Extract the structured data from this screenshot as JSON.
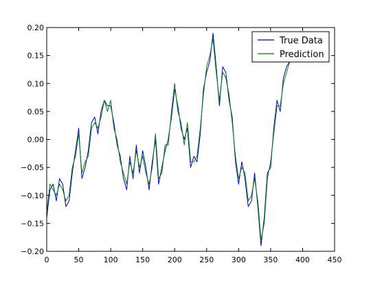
{
  "chart_data": {
    "type": "line",
    "title": "",
    "xlabel": "",
    "ylabel": "",
    "xlim": [
      0,
      450
    ],
    "ylim": [
      -0.2,
      0.2
    ],
    "x_ticks": [
      0,
      50,
      100,
      150,
      200,
      250,
      300,
      350,
      400,
      450
    ],
    "x_tick_labels": [
      "0",
      "50",
      "100",
      "150",
      "200",
      "250",
      "300",
      "350",
      "400",
      "450"
    ],
    "y_ticks": [
      -0.2,
      -0.15,
      -0.1,
      -0.05,
      0.0,
      0.05,
      0.1,
      0.15,
      0.2
    ],
    "y_tick_labels": [
      "−0.20",
      "−0.15",
      "−0.10",
      "−0.05",
      "0.00",
      "0.05",
      "0.10",
      "0.15",
      "0.20"
    ],
    "grid": false,
    "legend_position": "top-right",
    "series": [
      {
        "name": "True Data",
        "color": "#0000cc",
        "x": [
          0,
          5,
          10,
          15,
          20,
          25,
          30,
          35,
          40,
          45,
          50,
          55,
          60,
          65,
          70,
          75,
          80,
          85,
          90,
          95,
          100,
          105,
          110,
          115,
          120,
          125,
          130,
          135,
          140,
          145,
          150,
          155,
          160,
          165,
          170,
          175,
          180,
          185,
          190,
          195,
          200,
          205,
          210,
          215,
          220,
          225,
          230,
          235,
          240,
          245,
          250,
          255,
          260,
          265,
          270,
          275,
          280,
          285,
          290,
          295,
          300,
          305,
          310,
          315,
          320,
          325,
          330,
          335,
          340,
          345,
          350,
          355,
          360,
          365,
          370,
          375,
          380,
          385,
          390,
          395,
          400,
          405,
          410
        ],
        "y": [
          -0.14,
          -0.09,
          -0.08,
          -0.11,
          -0.07,
          -0.08,
          -0.12,
          -0.11,
          -0.06,
          -0.02,
          0.02,
          -0.07,
          -0.05,
          -0.02,
          0.03,
          0.04,
          0.01,
          0.05,
          0.07,
          0.06,
          0.06,
          0.03,
          -0.01,
          -0.03,
          -0.07,
          -0.09,
          -0.03,
          -0.07,
          -0.01,
          -0.06,
          -0.02,
          -0.05,
          -0.09,
          -0.04,
          0.0,
          -0.08,
          -0.05,
          -0.02,
          0.0,
          0.04,
          0.09,
          0.06,
          0.02,
          0.0,
          0.02,
          -0.05,
          -0.03,
          -0.04,
          0.01,
          0.09,
          0.12,
          0.14,
          0.19,
          0.13,
          0.06,
          0.13,
          0.12,
          0.07,
          0.04,
          -0.04,
          -0.08,
          -0.04,
          -0.07,
          -0.12,
          -0.11,
          -0.06,
          -0.12,
          -0.19,
          -0.14,
          -0.06,
          -0.05,
          0.02,
          0.07,
          0.05,
          0.11,
          0.13,
          0.14,
          0.14,
          0.14,
          0.14,
          0.14,
          0.14,
          0.14
        ]
      },
      {
        "name": "Prediction",
        "color": "#008000",
        "x": [
          0,
          5,
          10,
          15,
          20,
          25,
          30,
          35,
          40,
          45,
          50,
          55,
          60,
          65,
          70,
          75,
          80,
          85,
          90,
          95,
          100,
          105,
          110,
          115,
          120,
          125,
          130,
          135,
          140,
          145,
          150,
          155,
          160,
          165,
          170,
          175,
          180,
          185,
          190,
          195,
          200,
          205,
          210,
          215,
          220,
          225,
          230,
          235,
          240,
          245,
          250,
          255,
          260,
          265,
          270,
          275,
          280,
          285,
          290,
          295,
          300,
          305,
          310,
          315,
          320,
          325,
          330,
          335,
          340,
          345,
          350,
          355,
          360,
          365,
          370,
          375,
          380,
          385,
          390,
          395,
          400,
          405,
          410
        ],
        "y": [
          -0.13,
          -0.08,
          -0.09,
          -0.1,
          -0.08,
          -0.09,
          -0.11,
          -0.1,
          -0.05,
          -0.03,
          0.01,
          -0.06,
          -0.04,
          -0.03,
          0.02,
          0.03,
          0.02,
          0.04,
          0.07,
          0.05,
          0.07,
          0.02,
          0.0,
          -0.04,
          -0.06,
          -0.08,
          -0.04,
          -0.06,
          -0.02,
          -0.05,
          -0.03,
          -0.06,
          -0.08,
          -0.05,
          0.01,
          -0.07,
          -0.06,
          -0.01,
          -0.01,
          0.05,
          0.1,
          0.05,
          0.03,
          -0.01,
          0.03,
          -0.04,
          -0.04,
          -0.03,
          0.02,
          0.08,
          0.13,
          0.15,
          0.18,
          0.12,
          0.07,
          0.12,
          0.11,
          0.08,
          0.03,
          -0.03,
          -0.07,
          -0.05,
          -0.06,
          -0.11,
          -0.1,
          -0.07,
          -0.11,
          -0.18,
          -0.15,
          -0.07,
          -0.04,
          0.01,
          0.06,
          0.06,
          0.1,
          0.12,
          0.14,
          0.14,
          0.14,
          0.14,
          0.14,
          0.14,
          0.14
        ]
      }
    ]
  }
}
